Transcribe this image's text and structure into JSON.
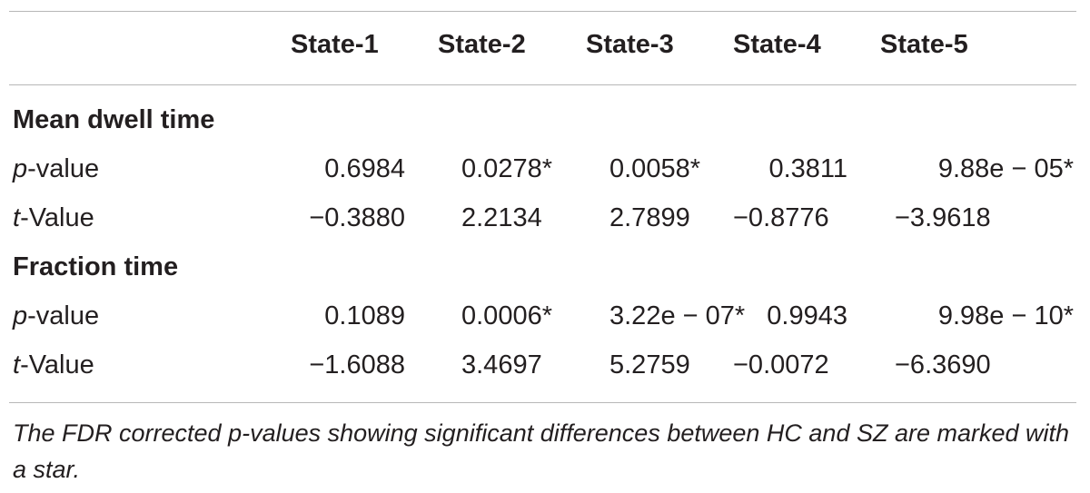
{
  "table": {
    "columns": [
      "State-1",
      "State-2",
      "State-3",
      "State-4",
      "State-5"
    ],
    "sections": [
      {
        "title": "Mean dwell time",
        "rows": [
          {
            "label_italic": "p",
            "label_rest": "-value",
            "values": [
              "0.6984",
              "0.0278*",
              "0.0058*",
              "0.3811",
              "9.88e − 05*"
            ]
          },
          {
            "label_italic": "t",
            "label_rest": "-Value",
            "values": [
              "−0.3880",
              "2.2134",
              "2.7899",
              "−0.8776",
              "−3.9618"
            ]
          }
        ]
      },
      {
        "title": "Fraction time",
        "rows": [
          {
            "label_italic": "p",
            "label_rest": "-value",
            "values": [
              "0.1089",
              "0.0006*",
              "3.22e − 07*",
              "0.9943",
              "9.98e − 10*"
            ]
          },
          {
            "label_italic": "t",
            "label_rest": "-Value",
            "values": [
              "−1.6088",
              "3.4697",
              "5.2759",
              "−0.0072",
              "−6.3690"
            ]
          }
        ]
      }
    ],
    "footnote": "The FDR corrected p-values showing significant differences between HC and SZ are marked with a star."
  }
}
